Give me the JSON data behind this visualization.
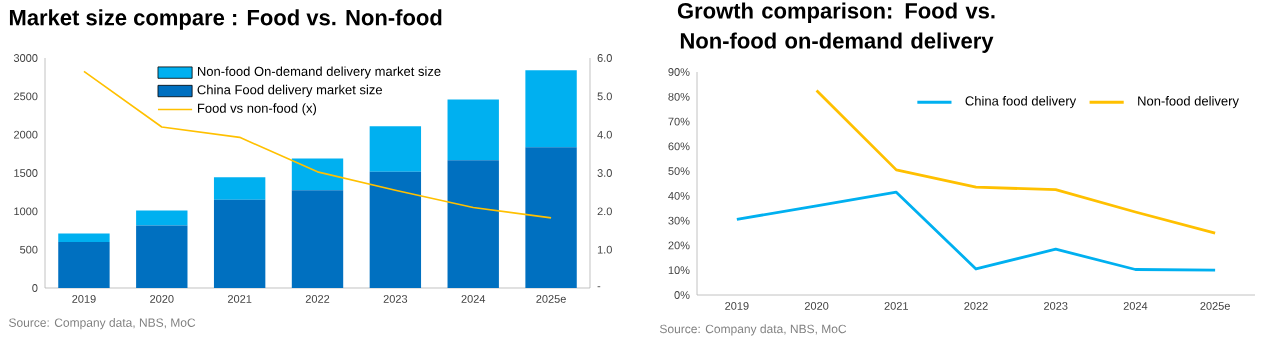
{
  "chart_data": [
    {
      "type": "bar",
      "stacked": true,
      "title": "Market size compare : Food vs. Non-food",
      "categories": [
        "2019",
        "2020",
        "2021",
        "2022",
        "2023",
        "2024",
        "2025e"
      ],
      "series": [
        {
          "name": "China Food delivery market size",
          "color": "#0070c0",
          "values": [
            600,
            815,
            1150,
            1275,
            1515,
            1665,
            1835
          ]
        },
        {
          "name": "Non-food On-demand delivery market size",
          "color": "#00b0f0",
          "values": [
            110,
            195,
            295,
            415,
            595,
            795,
            1005
          ]
        },
        {
          "name": "Food vs non-food (x)",
          "type": "line",
          "axis": "y2",
          "color": "#ffc000",
          "values": [
            5.65,
            4.2,
            3.93,
            3.03,
            2.55,
            2.1,
            1.83
          ]
        }
      ],
      "ylim": [
        0,
        3000
      ],
      "yticks": [
        0,
        500,
        1000,
        1500,
        2000,
        2500,
        3000
      ],
      "y2lim": [
        0,
        6
      ],
      "y2ticks": [
        {
          "value": 0,
          "label": "-"
        },
        {
          "value": 1,
          "label": "1.0"
        },
        {
          "value": 2,
          "label": "2.0"
        },
        {
          "value": 3,
          "label": "3.0"
        },
        {
          "value": 4,
          "label": "4.0"
        },
        {
          "value": 5,
          "label": "5.0"
        },
        {
          "value": 6,
          "label": "6.0"
        }
      ],
      "legend": "top",
      "annotations": [
        "Source: Company data, NBS, MoC"
      ]
    },
    {
      "type": "line",
      "title": "Growth comparison: Food vs. Non-food on-demand delivery",
      "categories": [
        "2019",
        "2020",
        "2021",
        "2022",
        "2023",
        "2024",
        "2025e"
      ],
      "series": [
        {
          "name": "China food delivery",
          "color": "#00b0f0",
          "values": [
            30.5,
            36,
            41.5,
            10.5,
            18.5,
            10.3,
            10
          ]
        },
        {
          "name": "Non-food delivery",
          "color": "#ffc000",
          "values": [
            null,
            82.5,
            50.5,
            43.5,
            42.5,
            33.5,
            25
          ]
        }
      ],
      "ylim": [
        0,
        90
      ],
      "yticks": [
        {
          "value": 0,
          "label": "0%"
        },
        {
          "value": 10,
          "label": "10%"
        },
        {
          "value": 20,
          "label": "20%"
        },
        {
          "value": 30,
          "label": "30%"
        },
        {
          "value": 40,
          "label": "40%"
        },
        {
          "value": 50,
          "label": "50%"
        },
        {
          "value": 60,
          "label": "60%"
        },
        {
          "value": 70,
          "label": "70%"
        },
        {
          "value": 80,
          "label": "80%"
        },
        {
          "value": 90,
          "label": "90%"
        }
      ],
      "legend": "top right",
      "annotations": [
        "Source: Company data, NBS, MoC"
      ]
    }
  ]
}
